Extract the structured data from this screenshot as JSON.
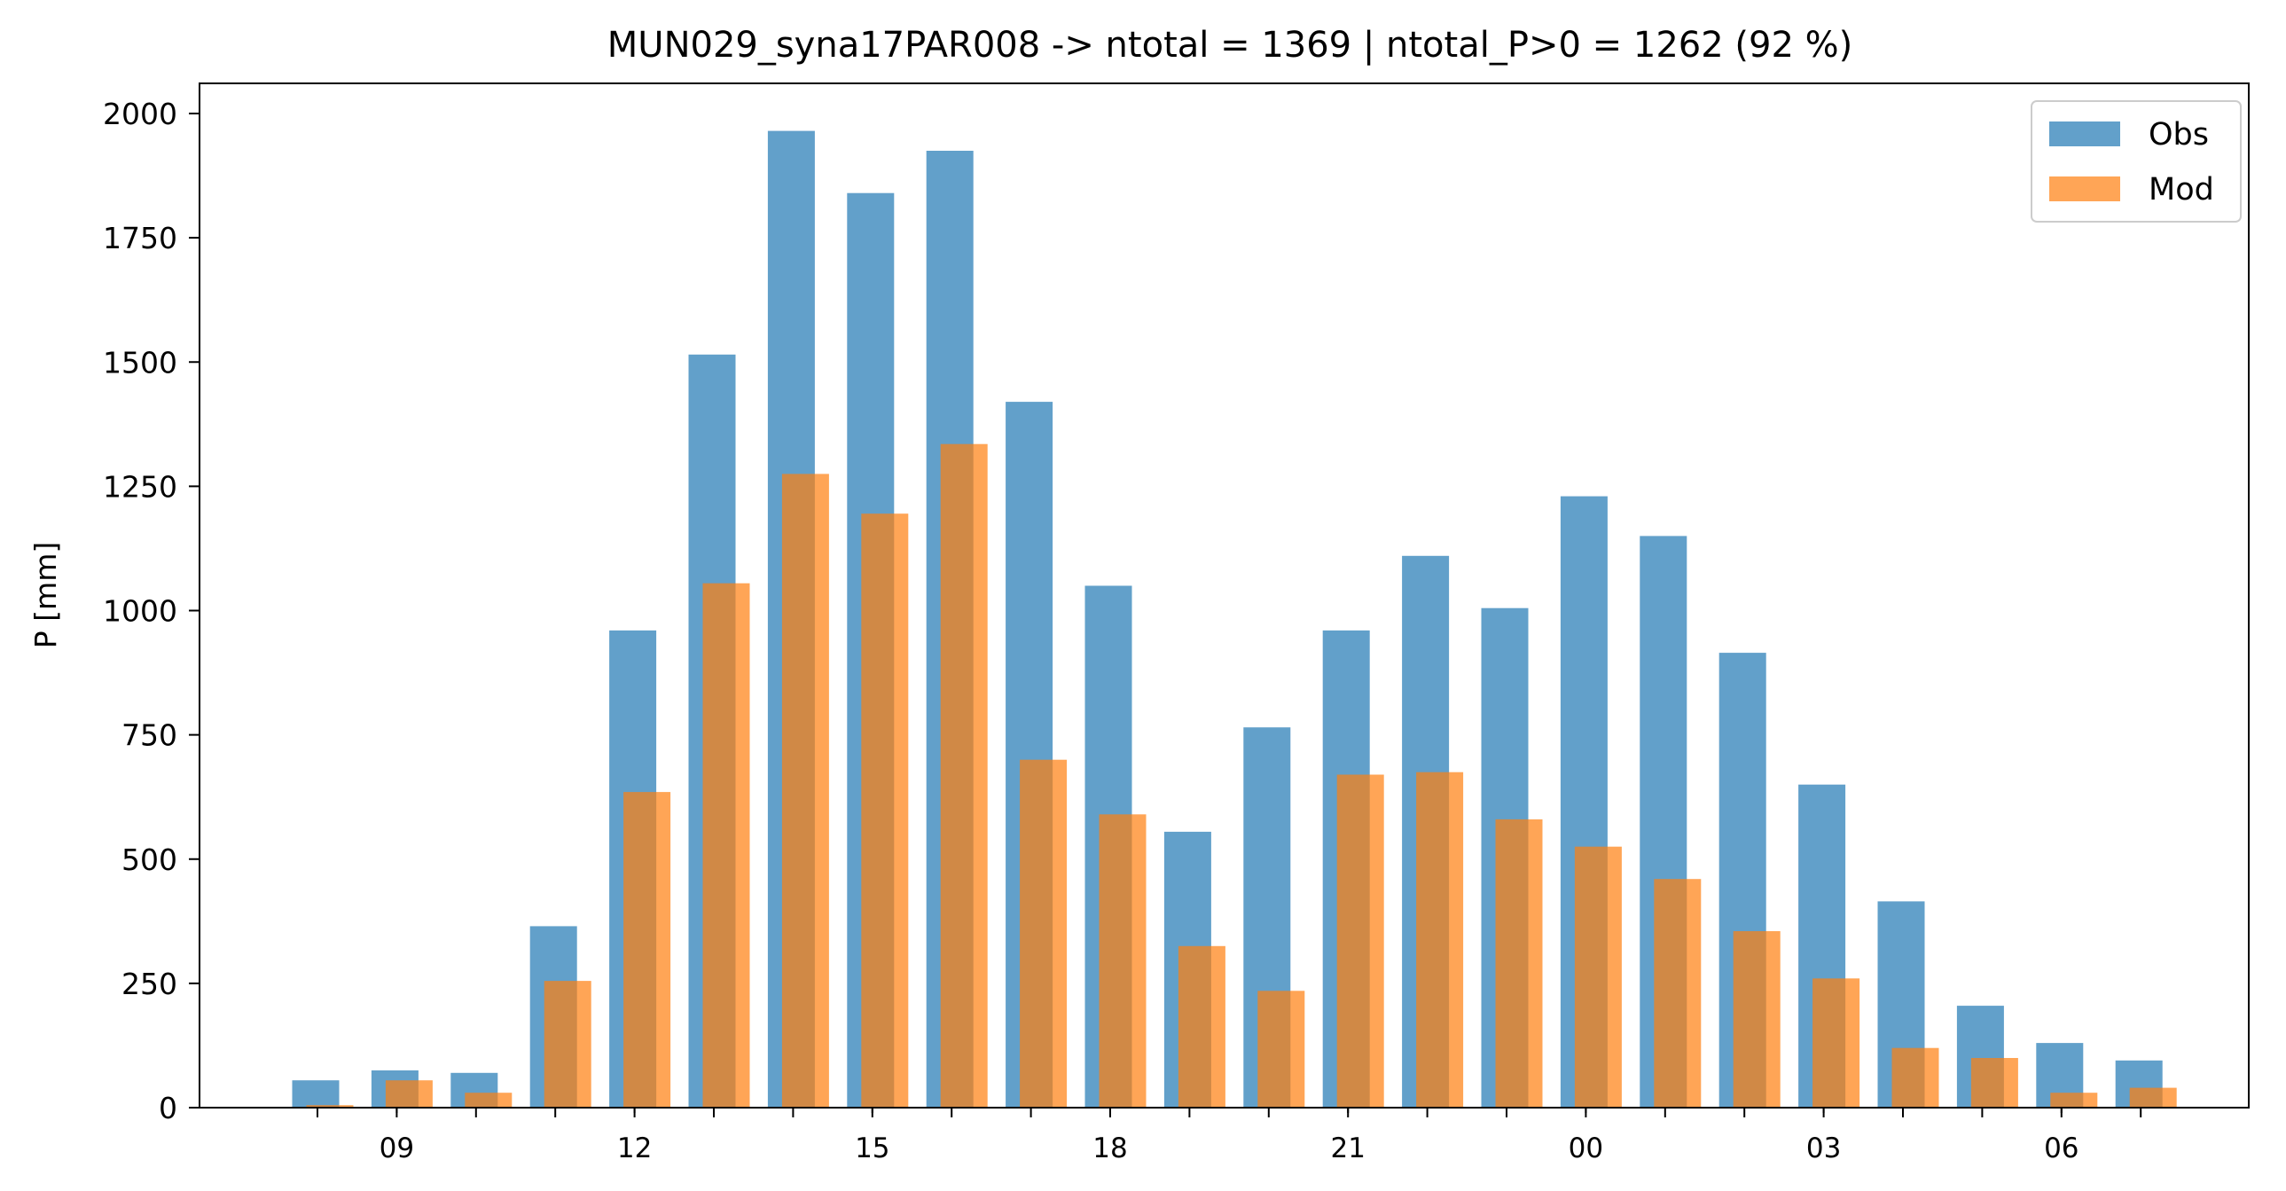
{
  "chart_data": {
    "type": "bar",
    "title": "MUN029_syna17PAR008 -> ntotal = 1369 | ntotal_P>0 = 1262 (92 %)",
    "ylabel": "P [mm]",
    "xlabel": "",
    "ylim": [
      0,
      2000
    ],
    "yticks": [
      "0",
      "250",
      "500",
      "750",
      "1000",
      "1250",
      "1500",
      "1750",
      "2000"
    ],
    "x_hours": [
      8,
      9,
      10,
      11,
      12,
      13,
      14,
      15,
      16,
      17,
      18,
      19,
      20,
      21,
      22,
      23,
      24,
      25,
      26,
      27,
      28,
      29,
      30,
      31
    ],
    "xtick_labels": [
      {
        "hour": 9,
        "label": "09"
      },
      {
        "hour": 12,
        "label": "12"
      },
      {
        "hour": 15,
        "label": "15"
      },
      {
        "hour": 18,
        "label": "18"
      },
      {
        "hour": 21,
        "label": "21"
      },
      {
        "hour": 24,
        "label": "00"
      },
      {
        "hour": 27,
        "label": "03"
      },
      {
        "hour": 30,
        "label": "06"
      }
    ],
    "series": [
      {
        "name": "Obs",
        "color": "#1f77b4",
        "opacity": 0.7,
        "values": [
          55,
          75,
          70,
          365,
          960,
          1515,
          1965,
          1840,
          1925,
          1420,
          1050,
          555,
          765,
          960,
          1110,
          1005,
          1230,
          1150,
          915,
          650,
          415,
          205,
          130,
          95
        ]
      },
      {
        "name": "Mod",
        "color": "#ff7f0e",
        "opacity": 0.7,
        "values": [
          5,
          55,
          30,
          255,
          635,
          1055,
          1275,
          1195,
          1335,
          700,
          590,
          325,
          235,
          670,
          675,
          580,
          525,
          460,
          355,
          260,
          120,
          100,
          30,
          40
        ]
      }
    ],
    "legend_position": "upper-right"
  }
}
